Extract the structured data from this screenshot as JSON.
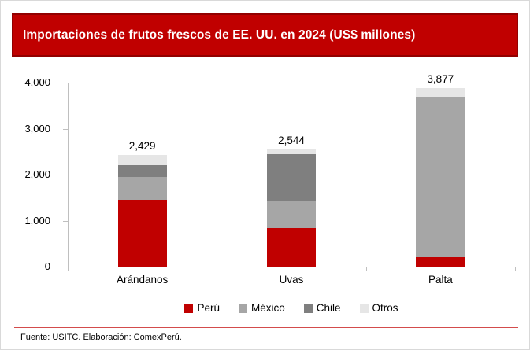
{
  "title": "Importaciones de frutos frescos de EE. UU. en 2024 (US$ millones)",
  "footer": {
    "source": "Fuente: USITC. Elaboración: ComexPerú."
  },
  "colors": {
    "accent_red": "#C00000",
    "banner_border": "#920000",
    "axis_line": "#BFBFBF",
    "text": "#000000",
    "background": "#FFFFFF"
  },
  "chart_data": {
    "type": "bar",
    "stacked": true,
    "title": "Importaciones de frutos frescos de EE. UU. en 2024 (US$ millones)",
    "categories": [
      "Arándanos",
      "Uvas",
      "Palta"
    ],
    "series": [
      {
        "name": "Perú",
        "color": "#C00000",
        "values": [
          1450,
          840,
          200
        ]
      },
      {
        "name": "México",
        "color": "#A6A6A6",
        "values": [
          495,
          575,
          3492
        ]
      },
      {
        "name": "Chile",
        "color": "#7F7F7F",
        "values": [
          260,
          1035,
          0
        ]
      },
      {
        "name": "Otros",
        "color": "#E6E6E6",
        "values": [
          224,
          94,
          185
        ]
      }
    ],
    "totals": [
      2429,
      2544,
      3877
    ],
    "total_labels": [
      "2,429",
      "2,544",
      "3,877"
    ],
    "xlabel": "",
    "ylabel": "",
    "ylim": [
      0,
      4000
    ],
    "ytick_labels": [
      "4,000",
      "3,000",
      "2,000",
      "1,000",
      "0"
    ],
    "grid": false,
    "legend_position": "bottom"
  }
}
